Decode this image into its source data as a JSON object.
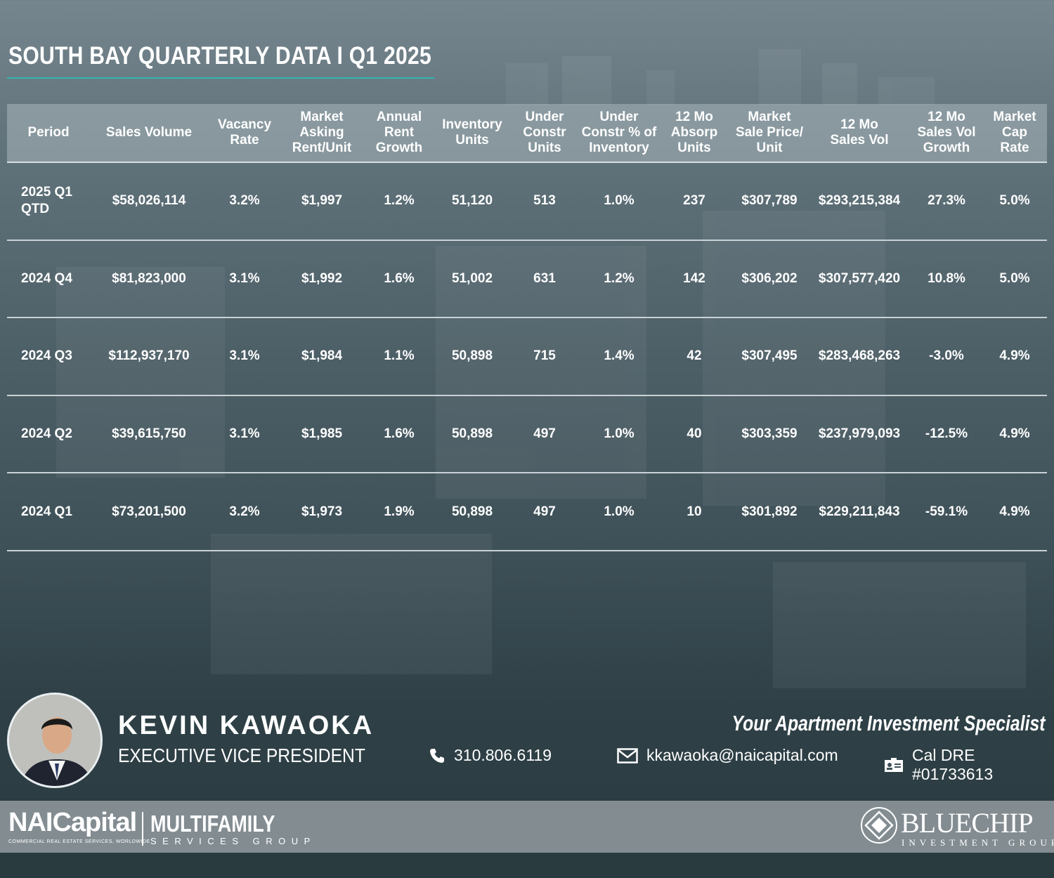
{
  "title": "SOUTH BAY QUARTERLY DATA I Q1 2025",
  "table": {
    "headers": [
      "Period",
      "Sales Volume",
      "Vacancy\nRate",
      "Market\nAsking\nRent/Unit",
      "Annual\nRent\nGrowth",
      "Inventory\nUnits",
      "Under\nConstr\nUnits",
      "Under\nConstr % of\nInventory",
      "12 Mo\nAbsorp\nUnits",
      "Market\nSale Price/\nUnit",
      "12 Mo\nSales Vol",
      "12 Mo\nSales Vol\nGrowth",
      "Market\nCap\nRate"
    ],
    "rows": [
      [
        "2025 Q1\nQTD",
        "$58,026,114",
        "3.2%",
        "$1,997",
        "1.2%",
        "51,120",
        "513",
        "1.0%",
        "237",
        "$307,789",
        "$293,215,384",
        "27.3%",
        "5.0%"
      ],
      [
        "2024 Q4",
        "$81,823,000",
        "3.1%",
        "$1,992",
        "1.6%",
        "51,002",
        "631",
        "1.2%",
        "142",
        "$306,202",
        "$307,577,420",
        "10.8%",
        "5.0%"
      ],
      [
        "2024 Q3",
        "$112,937,170",
        "3.1%",
        "$1,984",
        "1.1%",
        "50,898",
        "715",
        "1.4%",
        "42",
        "$307,495",
        "$283,468,263",
        "-3.0%",
        "4.9%"
      ],
      [
        "2024 Q2",
        "$39,615,750",
        "3.1%",
        "$1,985",
        "1.6%",
        "50,898",
        "497",
        "1.0%",
        "40",
        "$303,359",
        "$237,979,093",
        "-12.5%",
        "4.9%"
      ],
      [
        "2024 Q1",
        "$73,201,500",
        "3.2%",
        "$1,973",
        "1.9%",
        "50,898",
        "497",
        "1.0%",
        "10",
        "$301,892",
        "$229,211,843",
        "-59.1%",
        "4.9%"
      ]
    ]
  },
  "agent": {
    "name": "KEVIN KAWAOKA",
    "title": "EXECUTIVE VICE PRESIDENT",
    "tagline": "Your Apartment Investment Specialist",
    "phone": "310.806.6119",
    "email": "kkawaoka@naicapital.com",
    "license": "Cal DRE #01733613"
  },
  "footer": {
    "nai_logo": "NAICapital",
    "nai_tagline": "COMMERCIAL REAL ESTATE SERVICES, WORLDWIDE",
    "multifamily": "MULTIFAMILY",
    "multifamily_sub": "SERVICES GROUP",
    "bluechip": "BLUECHIP",
    "bluechip_sub": "INVESTMENT GROUP"
  },
  "colors": {
    "accent_rule": "#2fb8b0",
    "footer_band": "#828c91",
    "header_band": "#aab6bc"
  }
}
